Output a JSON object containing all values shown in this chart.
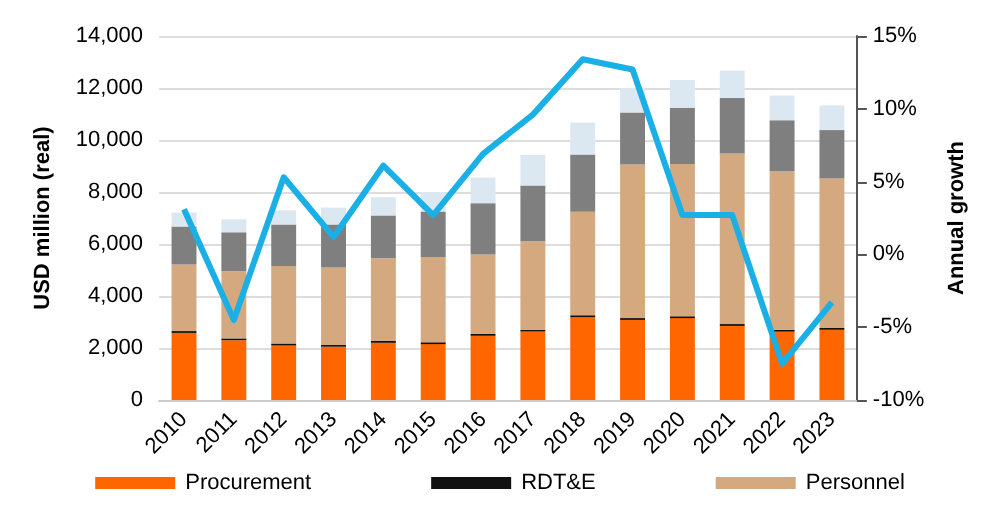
{
  "chart_data": {
    "type": "bar",
    "stacked": true,
    "ylabel": "USD million (real)",
    "y2label": "Annual growth",
    "categories": [
      "2010",
      "2011",
      "2012",
      "2013",
      "2014",
      "2015",
      "2016",
      "2017",
      "2018",
      "2019",
      "2020",
      "2021",
      "2022",
      "2023"
    ],
    "series": [
      {
        "name": "Procurement",
        "color": "#ff6600",
        "values": [
          2580,
          2300,
          2100,
          2050,
          2200,
          2150,
          2470,
          2630,
          3190,
          3080,
          3150,
          2850,
          2630,
          2700
        ]
      },
      {
        "name": "RDT&E",
        "color": "#111111",
        "values": [
          70,
          70,
          70,
          70,
          70,
          70,
          70,
          70,
          70,
          70,
          70,
          70,
          70,
          70
        ]
      },
      {
        "name": "Personnel",
        "color": "#d4a97f",
        "values": [
          2560,
          2580,
          2980,
          2980,
          3180,
          3280,
          3060,
          3410,
          3980,
          5910,
          5860,
          6560,
          6110,
          5750
        ]
      },
      {
        "color": "#7f7f7f",
        "values": [
          1460,
          1500,
          1600,
          1650,
          1650,
          1750,
          1970,
          2140,
          2200,
          2000,
          2160,
          2140,
          1950,
          1860
        ]
      },
      {
        "color": "#dbe8f2",
        "values": [
          540,
          500,
          550,
          650,
          700,
          750,
          990,
          1170,
          1230,
          940,
          1070,
          1050,
          950,
          950
        ]
      },
      {
        "type": "line",
        "axis": "y2",
        "color": "#1ab0e6",
        "values": [
          3.1,
          -4.5,
          5.3,
          1.2,
          6.1,
          2.7,
          6.9,
          9.6,
          13.4,
          12.7,
          2.7,
          2.7,
          -7.5,
          -3.3
        ]
      }
    ],
    "ylim": [
      0,
      14000
    ],
    "yticks": [
      {
        "value": 0,
        "label": "0"
      },
      {
        "value": 2000,
        "label": "2,000"
      },
      {
        "value": 4000,
        "label": "4,000"
      },
      {
        "value": 6000,
        "label": "6,000"
      },
      {
        "value": 8000,
        "label": "8,000"
      },
      {
        "value": 10000,
        "label": "10,000"
      },
      {
        "value": 12000,
        "label": "12,000"
      },
      {
        "value": 14000,
        "label": "14,000"
      }
    ],
    "y2lim": [
      -10,
      15
    ],
    "y2ticks": [
      {
        "value": -10,
        "label": "-10%"
      },
      {
        "value": -5,
        "label": "-5%"
      },
      {
        "value": 0,
        "label": "0%"
      },
      {
        "value": 5,
        "label": "5%"
      },
      {
        "value": 10,
        "label": "10%"
      },
      {
        "value": 15,
        "label": "15%"
      }
    ],
    "grid": "y",
    "legend": "bottom",
    "marker": "none"
  }
}
